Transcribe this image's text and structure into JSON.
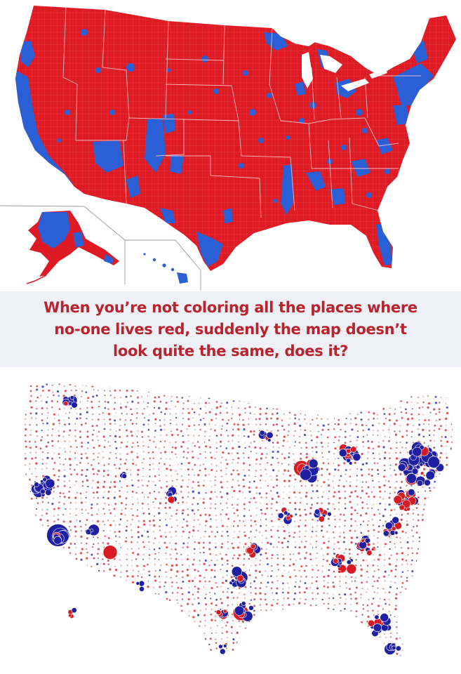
{
  "caption": {
    "line1": "When you’re not coloring all the places where",
    "line2": "no-one lives red, suddenly the map doesn’t",
    "line3": "look quite the same, does it?"
  },
  "colors": {
    "republican": "#de1a24",
    "democrat": "#2b5fd6",
    "bubble_democrat": "#1f1fa3",
    "bubble_republican": "#d81b22",
    "caption_text": "#b8232e",
    "caption_background": "#eef0f5"
  },
  "maps": [
    {
      "name": "county-choropleth-map",
      "style": "counties colored by winning party"
    },
    {
      "name": "population-bubble-map",
      "style": "bubbles sized by county population, colored by winning party"
    }
  ]
}
